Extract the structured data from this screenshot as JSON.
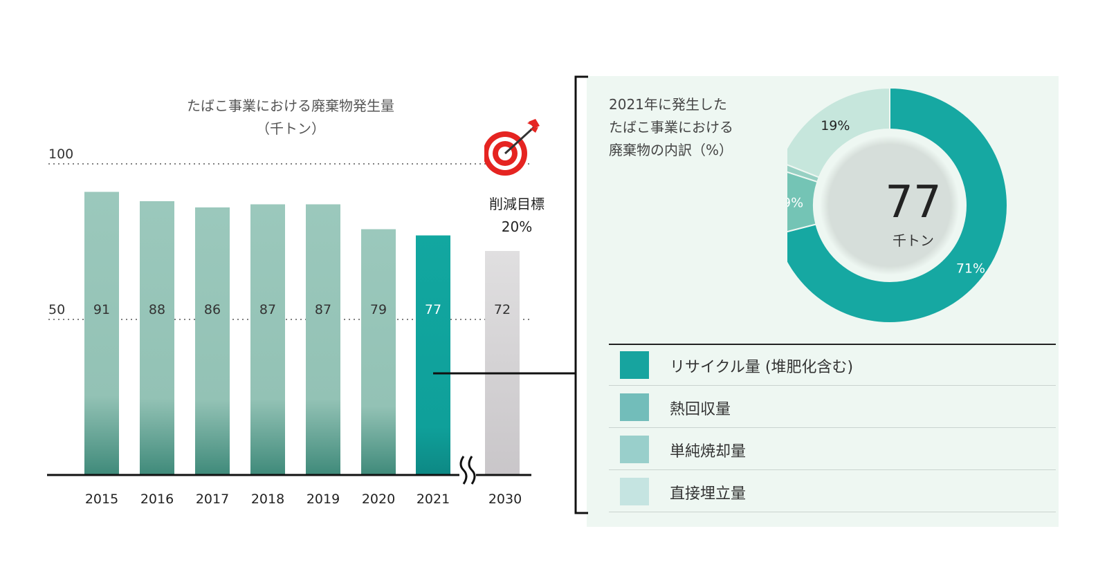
{
  "chart_data": [
    {
      "type": "bar",
      "title": "たばこ事業における廃棄物発生量",
      "subtitle": "（千トン）",
      "categories": [
        "2015",
        "2016",
        "2017",
        "2018",
        "2019",
        "2020",
        "2021",
        "2030"
      ],
      "values": [
        91,
        88,
        86,
        87,
        87,
        79,
        77,
        72
      ],
      "y_tick_labels": [
        "100",
        "50"
      ],
      "y_ticks": [
        100,
        50
      ],
      "gridlines": "dotted",
      "axis_break_between": [
        "2021",
        "2030"
      ],
      "highlight_category": "2021",
      "target_category": "2030",
      "colors": {
        "normal": "#9bc8bc",
        "normal_dark": "#4d9484",
        "highlight": "#12a7a0",
        "target": "#dcdadb"
      },
      "annotation": {
        "line1": "削減目標",
        "line2": "20%"
      }
    },
    {
      "type": "pie",
      "variant": "donut",
      "title_lines": [
        "2021年に発生した",
        "たばこ事業における",
        "廃棄物の内訳（%）"
      ],
      "center_value": "77",
      "center_unit": "千トン",
      "slices": [
        {
          "name": "リサイクル量（堆肥化含む）",
          "value": 71,
          "label": "71%",
          "color": "#16a8a2"
        },
        {
          "name": "熱回収量",
          "value": 9,
          "label": "9%",
          "color": "#74c4b5"
        },
        {
          "name": "単純焼却量",
          "value": 1,
          "label": "1%",
          "color": "#97d0c3"
        },
        {
          "name": "直接埋立量",
          "value": 19,
          "label": "19%",
          "color": "#c6e6dc"
        }
      ]
    }
  ],
  "legend": [
    {
      "label": "リサイクル量 (堆肥化含む)",
      "color": "#17a49f"
    },
    {
      "label": "熱回収量",
      "color": "#72bdba"
    },
    {
      "label": "単純焼却量",
      "color": "#99cfcb"
    },
    {
      "label": "直接埋立量",
      "color": "#c5e4e1"
    }
  ]
}
